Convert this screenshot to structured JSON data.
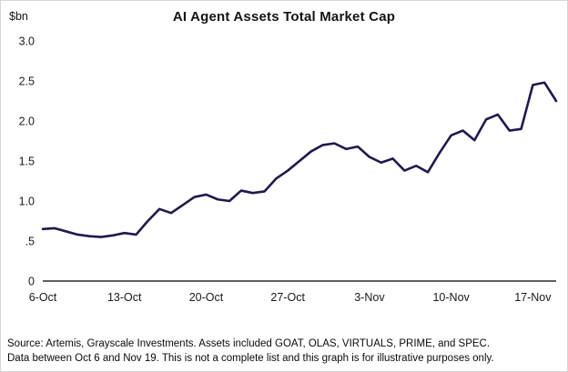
{
  "chart_data": {
    "type": "line",
    "title": "AI Agent Assets Total Market Cap",
    "y_axis_label": "$bn",
    "xlabel": "",
    "ylabel": "$bn",
    "ylim": [
      0,
      3.0
    ],
    "grid": false,
    "legend": false,
    "line_color": "#1e1a4d",
    "y_ticks": [
      "3.0",
      "2.5",
      "2.0",
      "1.5",
      "1.0",
      ".5",
      "0"
    ],
    "y_tick_values": [
      3.0,
      2.5,
      2.0,
      1.5,
      1.0,
      0.5,
      0
    ],
    "x_tick_labels": [
      "6-Oct",
      "13-Oct",
      "20-Oct",
      "27-Oct",
      "3-Nov",
      "10-Nov",
      "17-Nov"
    ],
    "x_tick_day_index": [
      0,
      7,
      14,
      21,
      28,
      35,
      42
    ],
    "x": [
      "6-Oct",
      "7-Oct",
      "8-Oct",
      "9-Oct",
      "10-Oct",
      "11-Oct",
      "12-Oct",
      "13-Oct",
      "14-Oct",
      "15-Oct",
      "16-Oct",
      "17-Oct",
      "18-Oct",
      "19-Oct",
      "20-Oct",
      "21-Oct",
      "22-Oct",
      "23-Oct",
      "24-Oct",
      "25-Oct",
      "26-Oct",
      "27-Oct",
      "28-Oct",
      "29-Oct",
      "30-Oct",
      "31-Oct",
      "1-Nov",
      "2-Nov",
      "3-Nov",
      "4-Nov",
      "5-Nov",
      "6-Nov",
      "7-Nov",
      "8-Nov",
      "9-Nov",
      "10-Nov",
      "11-Nov",
      "12-Nov",
      "13-Nov",
      "14-Nov",
      "15-Nov",
      "16-Nov",
      "17-Nov",
      "18-Nov",
      "19-Nov"
    ],
    "series": [
      {
        "name": "AI Agent Assets Total Market Cap ($bn)",
        "color": "#1e1a4d",
        "values": [
          0.65,
          0.66,
          0.62,
          0.58,
          0.56,
          0.55,
          0.57,
          0.6,
          0.58,
          0.75,
          0.9,
          0.85,
          0.95,
          1.05,
          1.08,
          1.02,
          1.0,
          1.13,
          1.1,
          1.12,
          1.28,
          1.38,
          1.5,
          1.62,
          1.7,
          1.72,
          1.65,
          1.68,
          1.55,
          1.48,
          1.53,
          1.38,
          1.44,
          1.36,
          1.6,
          1.82,
          1.88,
          1.76,
          2.02,
          2.08,
          1.88,
          1.9,
          2.45,
          2.48,
          2.25
        ]
      }
    ]
  },
  "footer": {
    "line1": "Source: Artemis, Grayscale Investments. Assets included GOAT, OLAS, VIRTUALS, PRIME, and SPEC.",
    "line2": "Data between Oct 6 and Nov 19.  This is not a complete list and this graph is for illustrative purposes only."
  }
}
